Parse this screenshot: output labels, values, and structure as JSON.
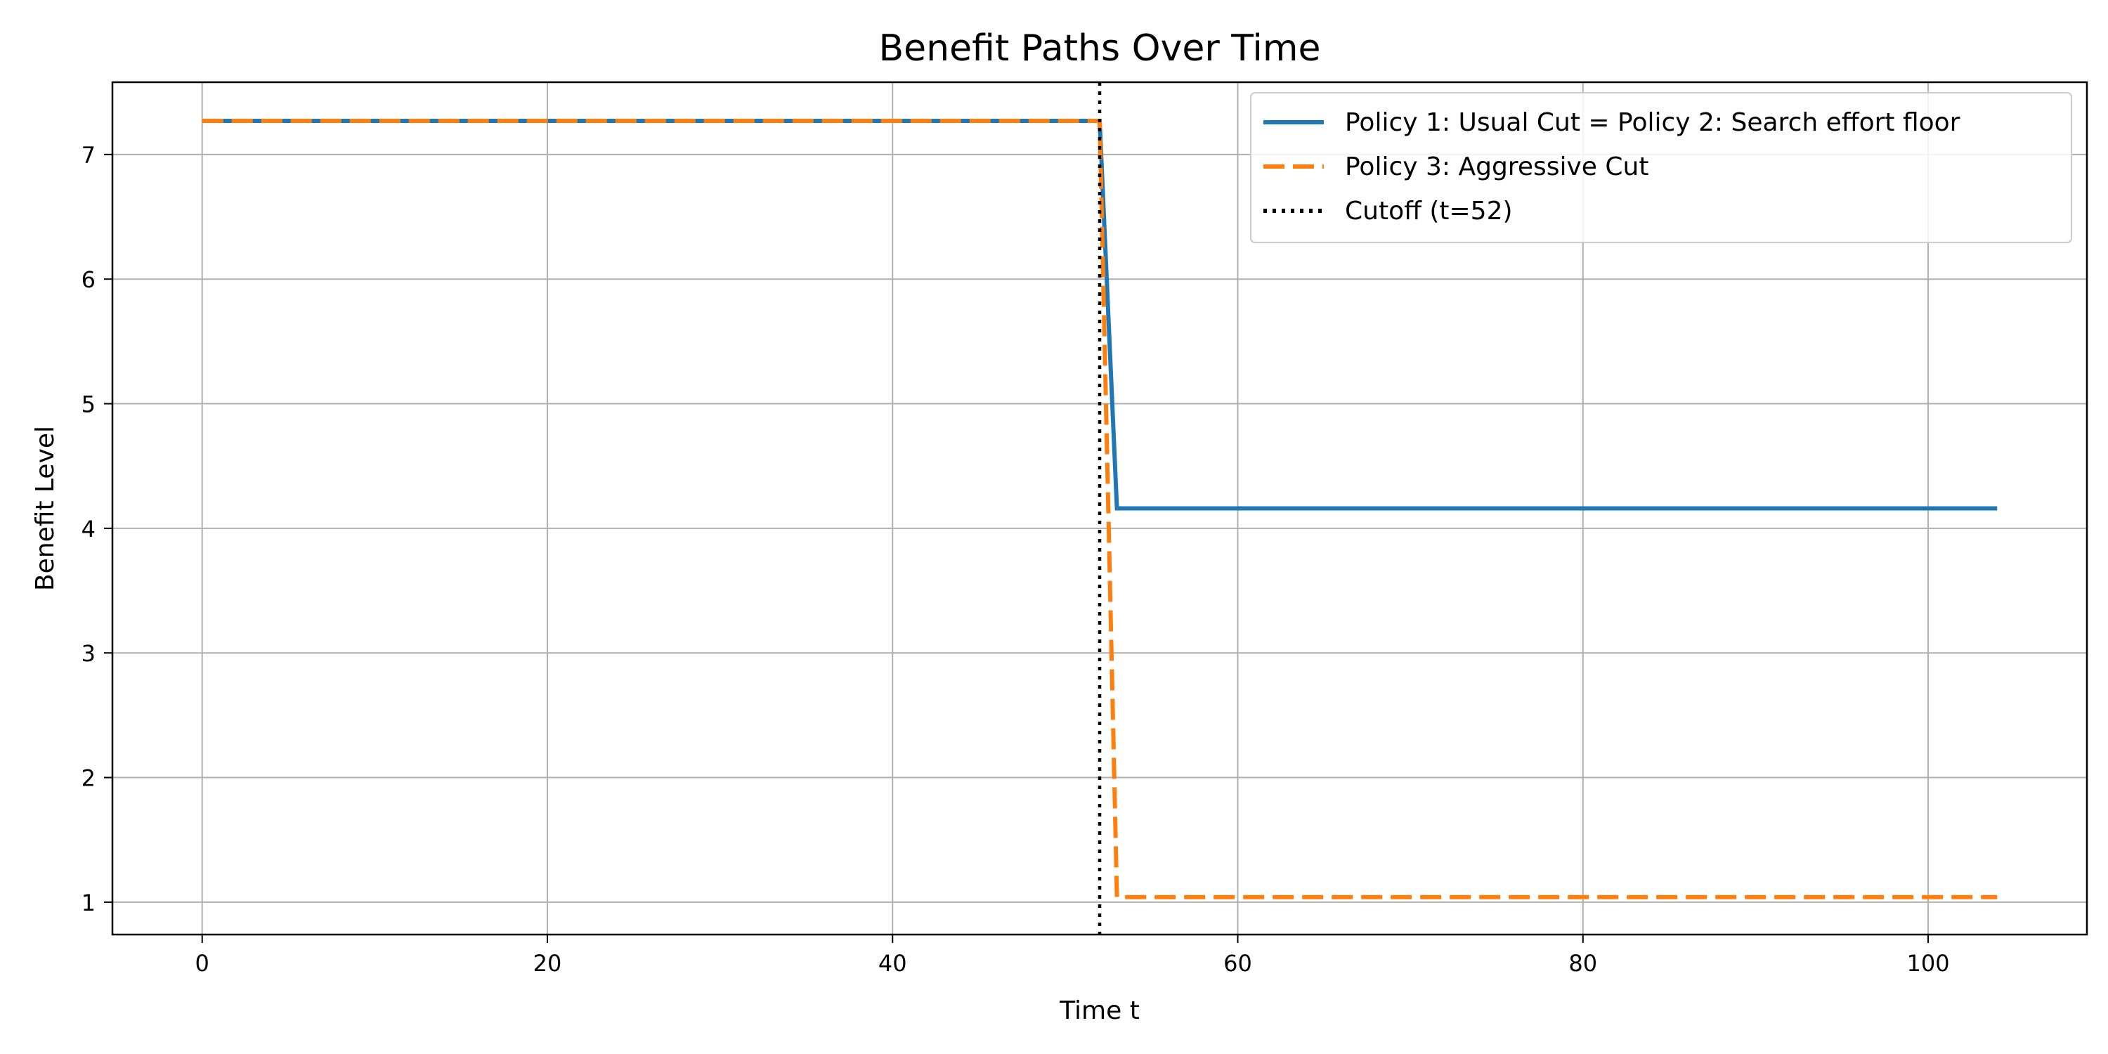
{
  "chart_data": {
    "type": "line",
    "title": "Benefit Paths Over Time",
    "xlabel": "Time t",
    "ylabel": "Benefit Level",
    "xlim": [
      -5.2,
      109.2
    ],
    "ylim": [
      0.74,
      7.58
    ],
    "xticks": [
      0,
      20,
      40,
      60,
      80,
      100
    ],
    "yticks": [
      1,
      2,
      3,
      4,
      5,
      6,
      7
    ],
    "grid": true,
    "legend_position": "top-right",
    "series": [
      {
        "name": "Policy 1: Usual Cut = Policy 2: Search effort floor",
        "color": "#1f77b4",
        "style": "solid",
        "x": [
          0,
          52,
          53,
          104
        ],
        "y": [
          7.27,
          7.27,
          4.16,
          4.16
        ]
      },
      {
        "name": "Policy 3: Aggressive Cut",
        "color": "#ff7f0e",
        "style": "dashed",
        "x": [
          0,
          52,
          53,
          104
        ],
        "y": [
          7.27,
          7.27,
          1.04,
          1.04
        ]
      }
    ],
    "vline": {
      "name": "Cutoff (t=52)",
      "x": 52,
      "color": "#000000",
      "style": "dotted"
    }
  }
}
